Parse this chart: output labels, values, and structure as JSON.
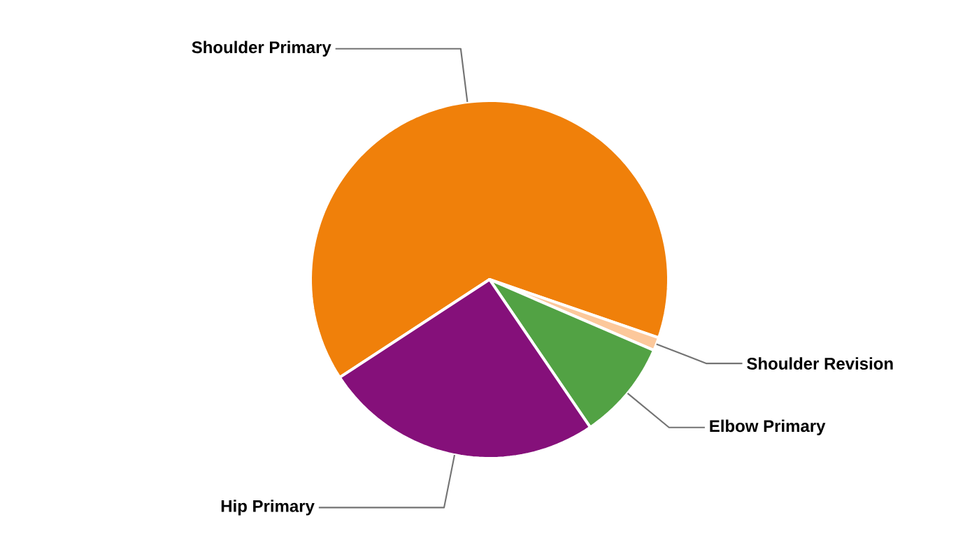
{
  "chart_data": {
    "type": "pie",
    "categories": [
      "Shoulder Primary",
      "Shoulder Revision",
      "Elbow Primary",
      "Hip Primary"
    ],
    "values": [
      64.5,
      1.2,
      9.0,
      25.3
    ],
    "colors": [
      "#f0800a",
      "#fcc89b",
      "#52a244",
      "#85107a"
    ]
  }
}
